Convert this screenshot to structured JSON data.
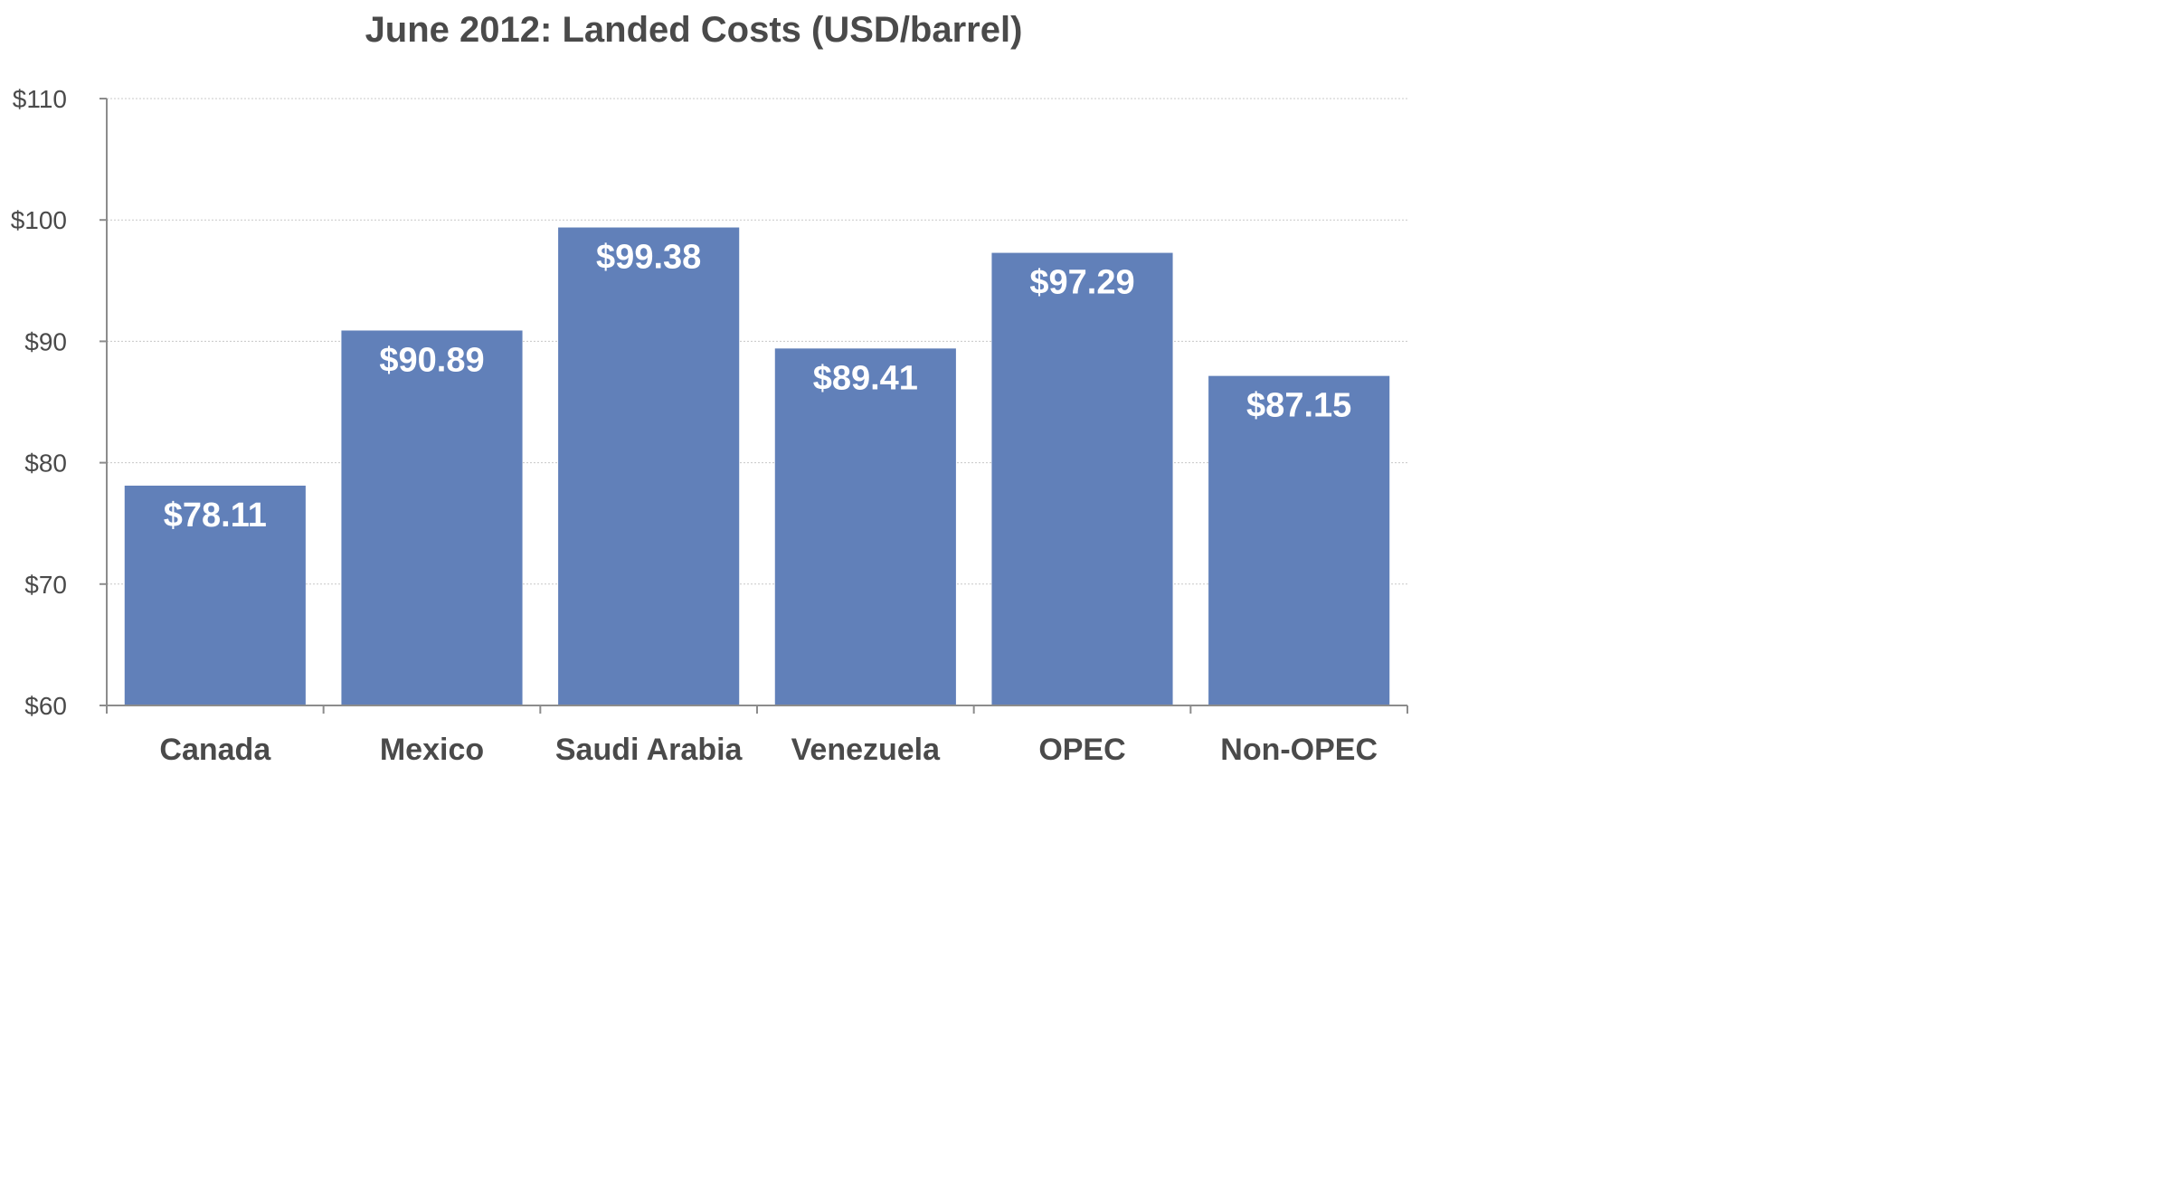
{
  "chart_data": {
    "type": "bar",
    "title": "June 2012: Landed Costs (USD/barrel)",
    "categories": [
      "Canada",
      "Mexico",
      "Saudi Arabia",
      "Venezuela",
      "OPEC",
      "Non-OPEC"
    ],
    "values": [
      78.11,
      90.89,
      99.38,
      89.41,
      97.29,
      87.15
    ],
    "data_labels": [
      "$78.11",
      "$90.89",
      "$99.38",
      "$89.41",
      "$97.29",
      "$87.15"
    ],
    "ylim": [
      60,
      110
    ],
    "y_ticks": [
      60,
      70,
      80,
      90,
      100,
      110
    ],
    "y_tick_labels": [
      "$60",
      "$70",
      "$80",
      "$90",
      "$100",
      "$110"
    ],
    "xlabel": "",
    "ylabel": "",
    "grid": true,
    "legend": "none",
    "colors": {
      "bar": "#6180b9",
      "data_label": "#ffffff",
      "title": "#4a4a4a",
      "tick_label": "#4a4a4a",
      "axis": "#8c8c8c",
      "grid": "#c8c8c8"
    }
  }
}
